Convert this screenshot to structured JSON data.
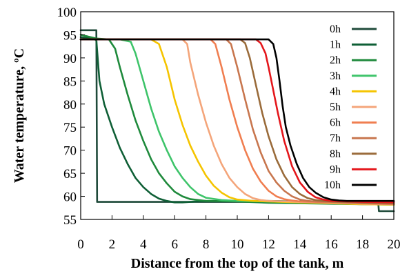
{
  "chart_data": {
    "type": "line",
    "xlabel": "Distance from the top of the tank, m",
    "ylabel": "Water temperature, ºC",
    "xlim": [
      0,
      20
    ],
    "ylim": [
      55,
      100
    ],
    "xticks": [
      0,
      2,
      4,
      6,
      8,
      10,
      12,
      14,
      16,
      18,
      20
    ],
    "yticks": [
      55,
      60,
      65,
      70,
      75,
      80,
      85,
      90,
      95,
      100
    ],
    "grid": false,
    "legend_position": "top-right",
    "series": [
      {
        "name": "0h",
        "color": "#1f4a3a",
        "x": [
          0,
          0.5,
          1.0,
          1.05,
          19.0,
          19.05,
          20
        ],
        "y": [
          96,
          96,
          96,
          58.8,
          58.8,
          56.8,
          56.8
        ]
      },
      {
        "name": "1h",
        "color": "#0f5f36",
        "x": [
          0,
          0.8,
          1.0,
          1.2,
          1.5,
          2.0,
          2.5,
          3.0,
          3.5,
          4.0,
          4.5,
          5.0,
          5.5,
          6.0,
          6.5,
          7.0,
          8.0,
          10.0,
          12.0,
          14.0,
          16.0,
          18.0,
          20
        ],
        "y": [
          94.5,
          94.2,
          93.8,
          85.0,
          80.0,
          75.0,
          70.5,
          67.0,
          64.0,
          62.0,
          60.5,
          59.5,
          59.0,
          58.7,
          58.7,
          58.8,
          59.0,
          59.0,
          59.0,
          58.9,
          58.9,
          58.8,
          58.8
        ]
      },
      {
        "name": "2h",
        "color": "#1f8a3c",
        "x": [
          0,
          1.0,
          1.8,
          2.2,
          2.5,
          3.0,
          3.5,
          4.0,
          4.5,
          5.0,
          5.5,
          6.0,
          6.5,
          7.0,
          8.0,
          10.0,
          12.0,
          14.0,
          16.0,
          18.0,
          20
        ],
        "y": [
          95,
          94.2,
          94.0,
          92.0,
          88.0,
          82.0,
          76.5,
          72.0,
          68.0,
          65.0,
          62.8,
          61.0,
          60.0,
          59.4,
          59.0,
          58.9,
          58.6,
          58.5,
          58.4,
          58.3,
          58.2
        ]
      },
      {
        "name": "3h",
        "color": "#3ec46a",
        "x": [
          0,
          2.5,
          3.2,
          3.5,
          4.0,
          4.5,
          5.0,
          5.5,
          6.0,
          6.5,
          7.0,
          7.5,
          8.0,
          9.0,
          10.0,
          12.0,
          14.0,
          16.0,
          18.0,
          20
        ],
        "y": [
          94,
          94,
          93.5,
          91.0,
          85.0,
          79.0,
          74.0,
          70.0,
          66.5,
          64.0,
          62.0,
          60.5,
          59.7,
          59.2,
          59.0,
          58.9,
          58.7,
          58.5,
          58.3,
          58.2
        ]
      },
      {
        "name": "4h",
        "color": "#f5c400",
        "x": [
          0,
          4.5,
          5.0,
          5.5,
          6.0,
          6.5,
          7.0,
          7.5,
          8.0,
          8.5,
          9.0,
          9.5,
          10.0,
          11.0,
          12.0,
          14.0,
          16.0,
          18.0,
          20
        ],
        "y": [
          94,
          94,
          93.0,
          88.0,
          81.0,
          75.5,
          71.0,
          67.5,
          64.5,
          62.3,
          60.8,
          59.8,
          59.3,
          59.0,
          58.9,
          58.7,
          58.5,
          58.3,
          58.2
        ]
      },
      {
        "name": "5h",
        "color": "#f4a57a",
        "x": [
          0,
          6.5,
          6.8,
          7.0,
          7.5,
          8.0,
          8.5,
          9.0,
          9.5,
          10.0,
          10.5,
          11.0,
          11.5,
          12.0,
          14.0,
          16.0,
          18.0,
          20
        ],
        "y": [
          94,
          94,
          93.0,
          89.0,
          82.0,
          76.0,
          71.0,
          67.0,
          64.0,
          62.0,
          60.5,
          59.6,
          59.2,
          59.0,
          58.8,
          58.6,
          58.4,
          58.3
        ]
      },
      {
        "name": "6h",
        "color": "#f07e50",
        "x": [
          0,
          8.3,
          8.6,
          9.0,
          9.5,
          10.0,
          10.5,
          11.0,
          11.5,
          12.0,
          12.5,
          13.0,
          13.5,
          14.0,
          16.0,
          18.0,
          20
        ],
        "y": [
          94,
          94,
          93.0,
          88.0,
          81.0,
          75.0,
          70.0,
          66.0,
          63.2,
          61.2,
          60.0,
          59.4,
          59.1,
          58.9,
          58.7,
          58.5,
          58.3
        ]
      },
      {
        "name": "7h",
        "color": "#c8764e",
        "x": [
          0,
          9.3,
          9.6,
          10.0,
          10.5,
          11.0,
          11.5,
          12.0,
          12.5,
          13.0,
          13.5,
          14.0,
          14.5,
          15.0,
          16.0,
          18.0,
          20
        ],
        "y": [
          94,
          94,
          93.0,
          88.0,
          81.0,
          74.5,
          69.5,
          65.5,
          63.0,
          61.2,
          60.0,
          59.3,
          59.0,
          58.9,
          58.8,
          58.5,
          58.4
        ]
      },
      {
        "name": "8h",
        "color": "#9a6b3a",
        "x": [
          0,
          10.2,
          10.5,
          10.8,
          11.2,
          11.6,
          12.0,
          12.5,
          13.0,
          13.5,
          14.0,
          14.5,
          15.0,
          15.5,
          16.0,
          18.0,
          20
        ],
        "y": [
          94,
          94,
          93.2,
          90.0,
          84.0,
          78.0,
          73.0,
          68.0,
          64.5,
          62.0,
          60.5,
          59.6,
          59.2,
          59.0,
          58.9,
          58.7,
          58.5
        ]
      },
      {
        "name": "9h",
        "color": "#e4161b",
        "x": [
          0,
          11.2,
          11.5,
          11.8,
          12.0,
          12.3,
          12.6,
          13.0,
          13.5,
          14.0,
          14.5,
          15.0,
          15.5,
          16.0,
          17.0,
          18.0,
          20
        ],
        "y": [
          94,
          94,
          93.2,
          91.0,
          88.0,
          83.0,
          78.0,
          72.0,
          66.5,
          63.0,
          61.0,
          59.8,
          59.3,
          59.0,
          58.9,
          58.8,
          58.7
        ]
      },
      {
        "name": "10h",
        "color": "#000000",
        "x": [
          0,
          11.5,
          12.0,
          12.3,
          12.5,
          12.7,
          12.9,
          13.1,
          13.4,
          13.8,
          14.2,
          14.6,
          15.0,
          15.5,
          16.0,
          16.5,
          17.0,
          18.0,
          20
        ],
        "y": [
          94,
          94,
          94,
          93.0,
          90.0,
          85.0,
          79.5,
          75.0,
          71.0,
          67.0,
          64.0,
          62.0,
          60.8,
          59.8,
          59.3,
          59.1,
          59.0,
          59.0,
          59.0
        ]
      }
    ]
  }
}
